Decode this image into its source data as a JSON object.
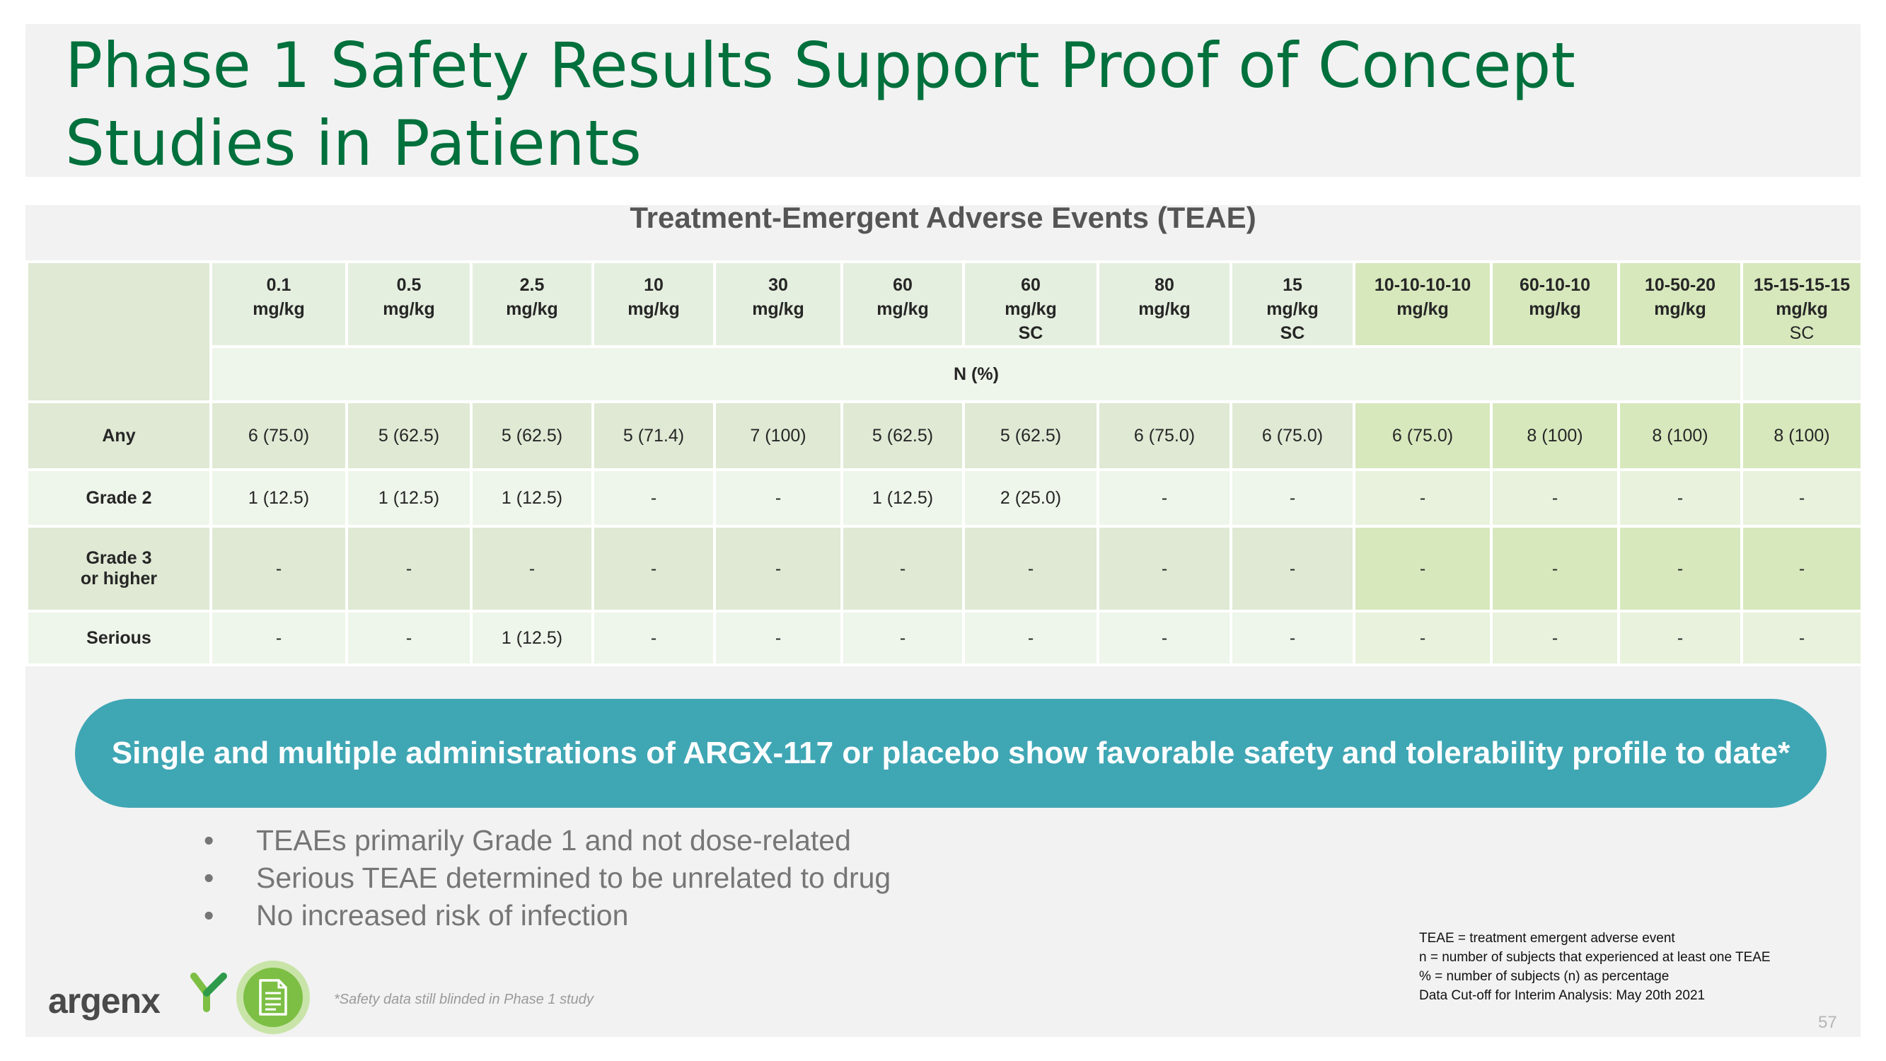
{
  "slide": {
    "title": "Phase 1 Safety Results Support Proof of Concept Studies in Patients",
    "subtitle": "Treatment-Emergent Adverse Events (TEAE)",
    "page_number": "57"
  },
  "table": {
    "columns": [
      {
        "dose": "0.1",
        "unit": "mg/kg",
        "route": ""
      },
      {
        "dose": "0.5",
        "unit": "mg/kg",
        "route": ""
      },
      {
        "dose": "2.5",
        "unit": "mg/kg",
        "route": ""
      },
      {
        "dose": "10",
        "unit": "mg/kg",
        "route": ""
      },
      {
        "dose": "30",
        "unit": "mg/kg",
        "route": ""
      },
      {
        "dose": "60",
        "unit": "mg/kg",
        "route": ""
      },
      {
        "dose": "60",
        "unit": "mg/kg",
        "route": "SC"
      },
      {
        "dose": "80",
        "unit": "mg/kg",
        "route": ""
      },
      {
        "dose": "15",
        "unit": "mg/kg",
        "route": "SC"
      },
      {
        "dose": "10-10-10-10",
        "unit": "mg/kg",
        "route": ""
      },
      {
        "dose": "60-10-10",
        "unit": "mg/kg",
        "route": ""
      },
      {
        "dose": "10-50-20",
        "unit": "mg/kg",
        "route": ""
      },
      {
        "dose": "15-15-15-15",
        "unit": "mg/kg",
        "route": "SC"
      }
    ],
    "n_label": "N (%)",
    "rows": [
      {
        "label": "Any",
        "values": [
          "6 (75.0)",
          "5 (62.5)",
          "5 (62.5)",
          "5 (71.4)",
          "7 (100)",
          "5 (62.5)",
          "5 (62.5)",
          "6 (75.0)",
          "6 (75.0)",
          "6 (75.0)",
          "8 (100)",
          "8 (100)",
          "8 (100)"
        ]
      },
      {
        "label": "Grade 2",
        "values": [
          "1 (12.5)",
          "1 (12.5)",
          "1 (12.5)",
          "-",
          "-",
          "1 (12.5)",
          "2 (25.0)",
          "-",
          "-",
          "-",
          "-",
          "-",
          "-"
        ]
      },
      {
        "label_line1": "Grade 3",
        "label_line2": "or higher",
        "values": [
          "-",
          "-",
          "-",
          "-",
          "-",
          "-",
          "-",
          "-",
          "-",
          "-",
          "-",
          "-",
          "-"
        ]
      },
      {
        "label": "Serious",
        "values": [
          "-",
          "-",
          "1 (12.5)",
          "-",
          "-",
          "-",
          "-",
          "-",
          "-",
          "-",
          "-",
          "-",
          "-"
        ]
      }
    ]
  },
  "banner": {
    "text": "Single and multiple administrations of ARGX-117 or placebo show favorable safety and tolerability profile to date*"
  },
  "bullets": [
    "TEAEs primarily Grade 1 and not dose-related",
    "Serious TEAE determined to be unrelated to drug",
    "No increased risk of infection"
  ],
  "definitions": [
    "TEAE = treatment emergent adverse event",
    "n = number of subjects that experienced at least one TEAE",
    "% = number of subjects (n) as percentage",
    "Data Cut-off for Interim Analysis: May 20th 2021"
  ],
  "footnote": "*Safety data still blinded in Phase 1 study",
  "logo": {
    "text": "argenx",
    "brand_color": "#7cbf44"
  },
  "colors": {
    "title_green": "#00703c",
    "banner_teal": "#3fa6b4",
    "icon_green": "#7cbf44"
  }
}
